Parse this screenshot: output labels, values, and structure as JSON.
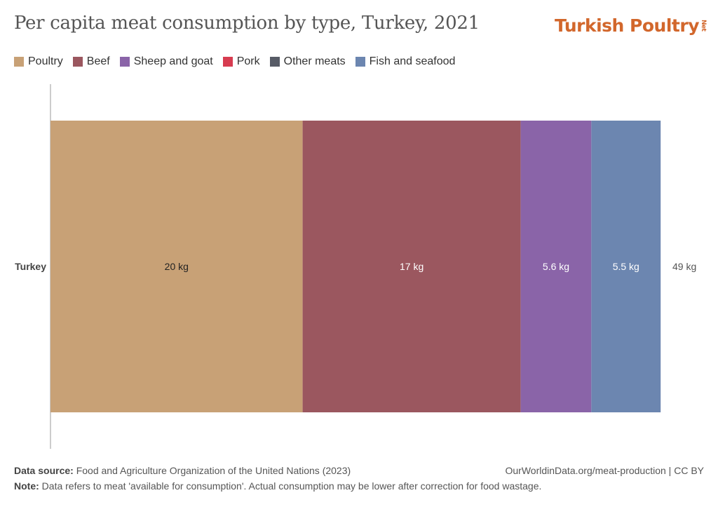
{
  "header": {
    "title": "Per capita meat consumption by type, Turkey, 2021",
    "logo_main": "Turkish Poultry",
    "logo_suffix": "Net"
  },
  "footer": {
    "source_label": "Data source:",
    "source_text": "Food and Agriculture Organization of the United Nations (2023)",
    "link_text": "OurWorldinData.org/meat-production | CC BY",
    "note_label": "Note:",
    "note_text": "Data refers to meat 'available for consumption'. Actual consumption may be lower after correction for food wastage."
  },
  "chart_data": {
    "type": "bar",
    "orientation": "horizontal",
    "stacked": true,
    "title": "Per capita meat consumption by type, Turkey, 2021",
    "categories": [
      "Turkey"
    ],
    "unit": "kg",
    "legend_position": "top-left",
    "grid": false,
    "xlim": [
      0,
      49
    ],
    "series": [
      {
        "name": "Poultry",
        "values": [
          20
        ],
        "label": "20 kg",
        "color": "#c8a176",
        "label_color": "#222222"
      },
      {
        "name": "Beef",
        "values": [
          17.3
        ],
        "label": "17 kg",
        "color": "#9b575f",
        "label_color": "#ffffff"
      },
      {
        "name": "Sheep and goat",
        "values": [
          5.6
        ],
        "label": "5.6 kg",
        "color": "#8a64a8",
        "label_color": "#ffffff"
      },
      {
        "name": "Pork",
        "values": [
          0
        ],
        "label": "",
        "color": "#d73c50",
        "label_color": "#ffffff"
      },
      {
        "name": "Other meats",
        "values": [
          0
        ],
        "label": "",
        "color": "#575b66",
        "label_color": "#ffffff"
      },
      {
        "name": "Fish and seafood",
        "values": [
          5.5
        ],
        "label": "5.5 kg",
        "color": "#6c86b0",
        "label_color": "#ffffff"
      }
    ],
    "totals": [
      "49 kg"
    ]
  }
}
